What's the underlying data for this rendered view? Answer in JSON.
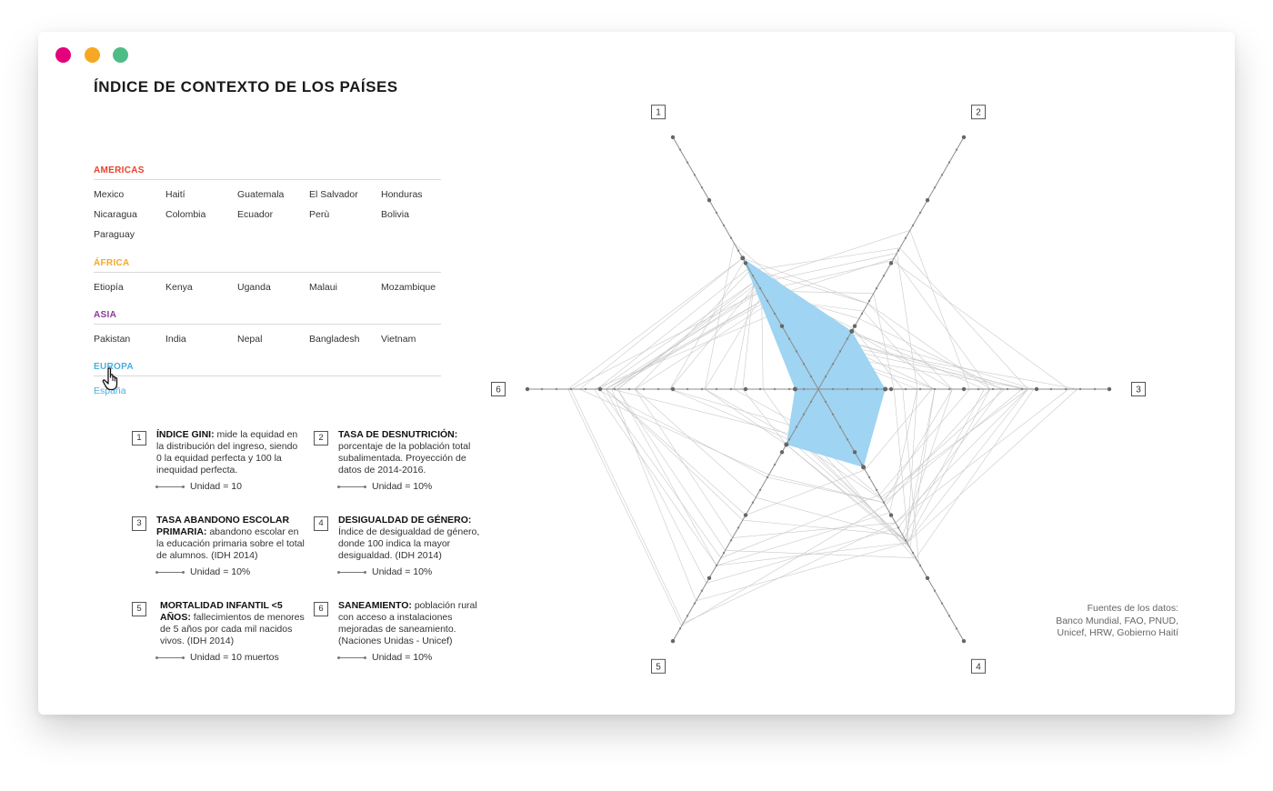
{
  "window": {
    "traffic_lights": [
      "#e4007c",
      "#f7a823",
      "#4dbd85"
    ]
  },
  "title": "ÍNDICE DE CONTEXTO DE LOS PAÍSES",
  "regions": [
    {
      "name": "AMERICAS",
      "color": "#e8412c",
      "countries": [
        "Mexico",
        "Haití",
        "Guatemala",
        "El Salvador",
        "Honduras",
        "Nicaragua",
        "Colombia",
        "Ecuador",
        "Perù",
        "Bolivia",
        "Paraguay"
      ]
    },
    {
      "name": "ÁFRICA",
      "color": "#f7a823",
      "countries": [
        "Etiopía",
        "Kenya",
        "Uganda",
        "Malaui",
        "Mozambique"
      ]
    },
    {
      "name": "ASIA",
      "color": "#8a3b9a",
      "countries": [
        "Pakistan",
        "India",
        "Nepal",
        "Bangladesh",
        "Vietnam"
      ]
    },
    {
      "name": "EUROPA",
      "color": "#4aaee0",
      "countries": [
        "España"
      ]
    }
  ],
  "selected_country": "España",
  "indicators": [
    {
      "num": "1",
      "title": "ÍNDICE GINI:",
      "text": "mide la equidad en la distribución del ingreso, siendo 0 la equidad perfecta y 100 la inequidad perfecta.",
      "unit": "Unidad = 10"
    },
    {
      "num": "2",
      "title": "TASA DE DESNUTRICIÓN:",
      "text": "porcentaje de la población total subalimentada. Proyección de datos de 2014-2016.",
      "unit": "Unidad = 10%"
    },
    {
      "num": "3",
      "title": "TASA ABANDONO ESCOLAR PRIMARIA:",
      "text": "abandono escolar en la educación primaria sobre el total de alumnos. (IDH 2014)",
      "unit": "Unidad = 10%"
    },
    {
      "num": "4",
      "title": "DESIGUALDAD DE GÉNERO:",
      "text": "Índice de desigualdad de género, donde 100 indica la mayor desigualdad.  (IDH 2014)",
      "unit": "Unidad = 10%"
    },
    {
      "num": "5",
      "title": "MORTALIDAD INFANTIL <5 AÑOS:",
      "text": "fallecimientos de menores de 5 años por cada mil nacidos vivos. (IDH 2014)",
      "unit": "Unidad = 10 muertos"
    },
    {
      "num": "6",
      "title": "SANEAMIENTO:",
      "text": " población rural con acceso a instalaciones mejoradas de saneamiento. (Naciones Unidas - Unicef)",
      "unit": "Unidad = 10%"
    }
  ],
  "sources": [
    "Fuentes de los datos:",
    "Banco Mundial, FAO, PNUD,",
    "Unicef, HRW, Gobierno Haití"
  ],
  "chart_data": {
    "type": "radar",
    "axes": [
      "1",
      "2",
      "3",
      "4",
      "5",
      "6"
    ],
    "axis_max": 10,
    "highlight_color": "#9fd4f2",
    "highlight": {
      "name": "España",
      "values": [
        5.2,
        2.3,
        2.3,
        3.1,
        2.2,
        0.8
      ]
    },
    "background_series": [
      [
        3.9,
        3.8,
        2.6,
        6.2,
        1.7,
        1.9
      ],
      [
        4.4,
        2.4,
        2.9,
        6.9,
        1.4,
        2.9
      ],
      [
        5.8,
        1.9,
        6.4,
        4.4,
        1.9,
        3.9
      ],
      [
        4.4,
        1.3,
        4.0,
        6.3,
        2.2,
        2.6
      ],
      [
        3.8,
        1.6,
        7.2,
        6.1,
        2.2,
        3.9
      ],
      [
        4.2,
        1.7,
        4.0,
        6.0,
        2.0,
        5.1
      ],
      [
        5.1,
        1.3,
        7.2,
        4.3,
        1.5,
        5.1
      ],
      [
        5.2,
        1.9,
        7.0,
        4.5,
        3.4,
        8.2
      ],
      [
        4.7,
        5.6,
        7.2,
        5.3,
        5.9,
        6.3
      ],
      [
        4.0,
        1.7,
        8.9,
        6.1,
        1.8,
        7.1
      ],
      [
        4.8,
        3.4,
        4.6,
        4.5,
        3.5,
        7.6
      ],
      [
        4.3,
        2.2,
        7.4,
        6.7,
        6.4,
        6.9
      ],
      [
        3.6,
        3.1,
        3.9,
        3.2,
        5.0,
        7.3
      ],
      [
        3.9,
        5.1,
        8.6,
        5.3,
        9.3,
        8.5
      ],
      [
        4.3,
        6.3,
        5.2,
        4.2,
        6.7,
        7.5
      ],
      [
        4.2,
        5.4,
        3.4,
        6.1,
        7.0,
        6.9
      ],
      [
        5.2,
        3.4,
        5.9,
        4.6,
        9.4,
        8.6
      ],
      [
        3.9,
        2.8,
        6.3,
        5.5,
        7.7,
        7.3
      ],
      [
        3.5,
        2.3,
        4.6,
        5.8,
        5.2,
        7.3
      ],
      [
        3.0,
        1.3,
        3.4,
        4.9,
        7.0,
        7.7
      ],
      [
        3.6,
        5.2,
        5.9,
        6.1,
        8.4,
        7.1
      ],
      [
        3.4,
        2.3,
        5.7,
        5.9,
        4.3,
        6.3
      ]
    ]
  }
}
